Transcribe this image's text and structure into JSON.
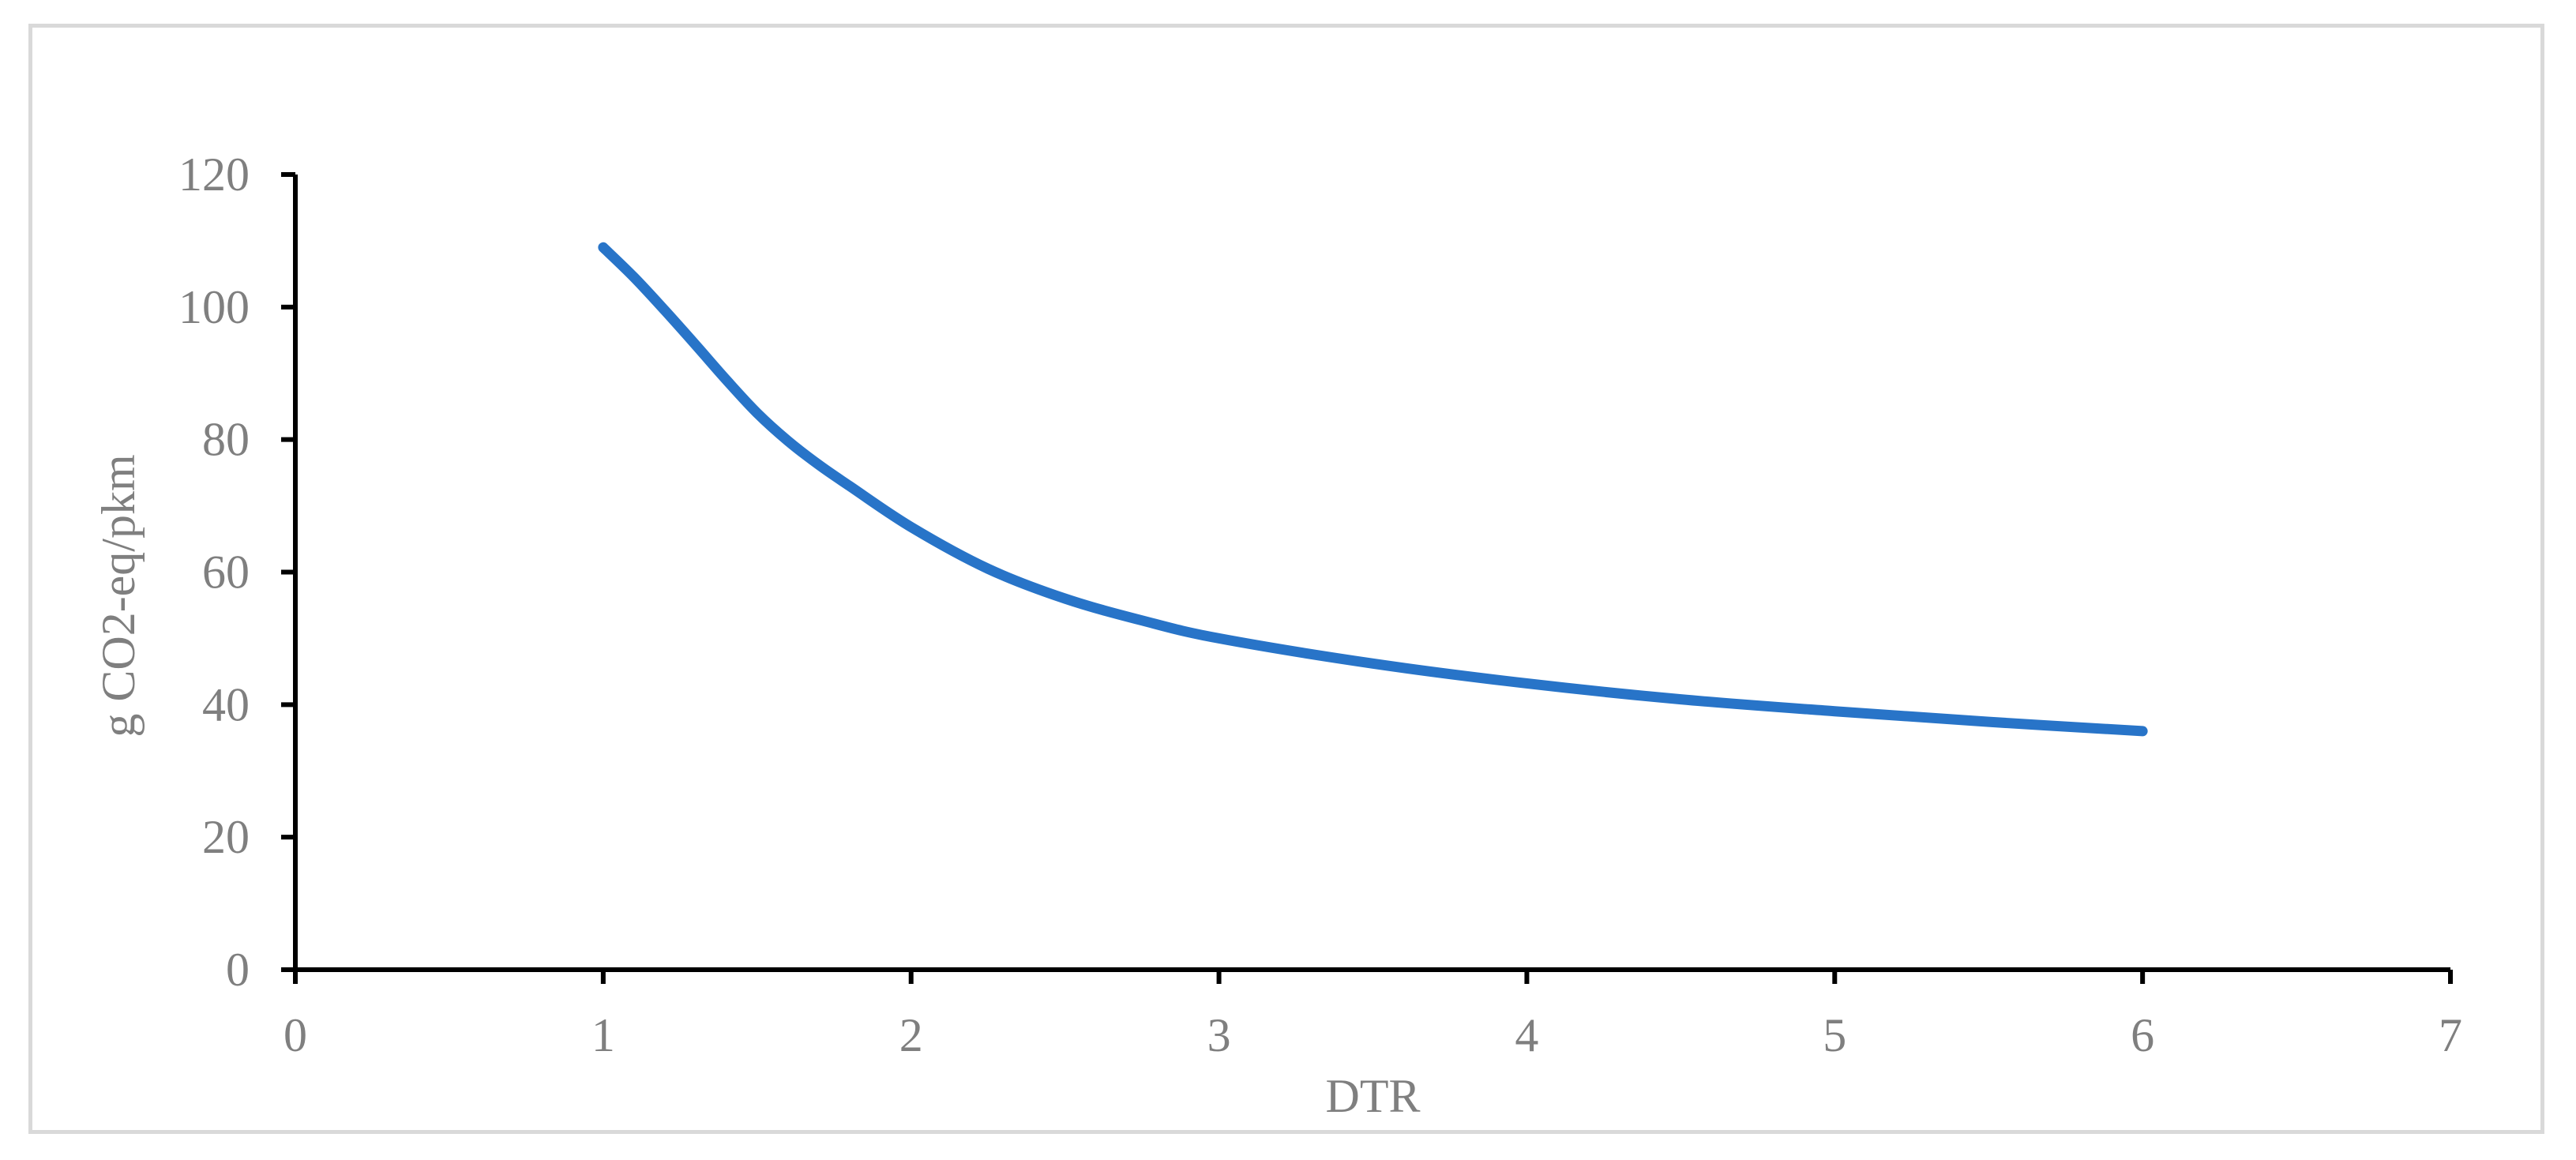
{
  "chart_data": {
    "type": "line",
    "title": "",
    "xlabel": "DTR",
    "ylabel": "g CO2-eq/pkm",
    "xlim": [
      0,
      7
    ],
    "ylim": [
      0,
      120
    ],
    "x_ticks": [
      "0",
      "1",
      "2",
      "3",
      "4",
      "5",
      "6",
      "7"
    ],
    "y_ticks": [
      "0",
      "20",
      "40",
      "60",
      "80",
      "100",
      "120"
    ],
    "grid": false,
    "legend": "none",
    "series": [
      {
        "color": "#2874c8",
        "x": [
          1.0,
          1.1,
          1.2,
          1.3,
          1.4,
          1.5,
          1.6,
          1.7,
          1.8,
          2.0,
          2.25,
          2.5,
          2.75,
          3.0,
          3.5,
          4.0,
          4.5,
          5.0,
          5.5,
          6.0
        ],
        "y": [
          109,
          104.5,
          99.5,
          94.3,
          89.0,
          84.0,
          79.8,
          76.2,
          73.0,
          66.8,
          60.5,
          56.0,
          52.7,
          50.0,
          46.2,
          43.2,
          40.8,
          39.0,
          37.4,
          36.0
        ]
      }
    ]
  }
}
